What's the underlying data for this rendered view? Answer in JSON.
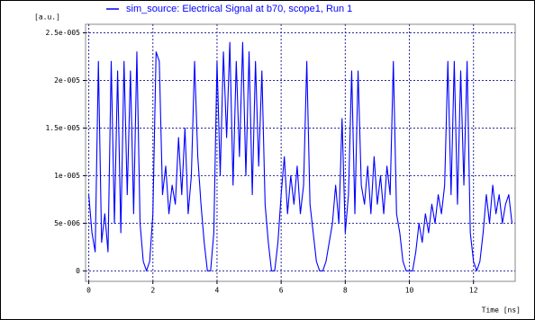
{
  "chart_data": {
    "type": "line",
    "y_label": "[a.u.]",
    "x_label": "Time [ns]",
    "x": [
      0,
      0.1,
      0.2,
      0.3,
      0.4,
      0.5,
      0.6,
      0.7,
      0.8,
      0.9,
      1,
      1.1,
      1.2,
      1.3,
      1.4,
      1.5,
      1.6,
      1.7,
      1.8,
      1.9,
      2,
      2.1,
      2.2,
      2.3,
      2.4,
      2.5,
      2.6,
      2.7,
      2.8,
      2.9,
      3,
      3.1,
      3.2,
      3.3,
      3.4,
      3.5,
      3.6,
      3.7,
      3.8,
      3.9,
      4,
      4.1,
      4.2,
      4.3,
      4.4,
      4.5,
      4.6,
      4.7,
      4.8,
      4.9,
      5,
      5.1,
      5.2,
      5.3,
      5.4,
      5.5,
      5.6,
      5.7,
      5.8,
      5.9,
      6,
      6.1,
      6.2,
      6.3,
      6.4,
      6.5,
      6.6,
      6.7,
      6.8,
      6.9,
      7,
      7.1,
      7.2,
      7.3,
      7.4,
      7.5,
      7.6,
      7.7,
      7.8,
      7.9,
      8,
      8.1,
      8.2,
      8.3,
      8.4,
      8.5,
      8.6,
      8.7,
      8.8,
      8.9,
      9,
      9.1,
      9.2,
      9.3,
      9.4,
      9.5,
      9.6,
      9.7,
      9.8,
      9.9,
      10,
      10.1,
      10.2,
      10.3,
      10.4,
      10.5,
      10.6,
      10.7,
      10.8,
      10.9,
      11,
      11.1,
      11.2,
      11.3,
      11.4,
      11.5,
      11.6,
      11.7,
      11.8,
      11.9,
      12,
      12.1,
      12.2,
      12.3,
      12.4,
      12.5,
      12.6,
      12.7,
      12.8,
      12.9,
      13,
      13.1,
      13.2
    ],
    "series": [
      {
        "name": "sim_source: Electrical Signal at b70, scope1, Run 1",
        "color": "#0000ff",
        "values": [
          8e-06,
          4e-06,
          2e-06,
          2.2e-05,
          3e-06,
          6e-06,
          2e-06,
          2.2e-05,
          5e-06,
          2.1e-05,
          4e-06,
          2.2e-05,
          8e-06,
          2.1e-05,
          6e-06,
          2.3e-05,
          5e-06,
          1e-06,
          0,
          1e-06,
          6e-06,
          2.3e-05,
          2.2e-05,
          8e-06,
          1.1e-05,
          6e-06,
          9e-06,
          7e-06,
          1.4e-05,
          8e-06,
          1.5e-05,
          6e-06,
          1e-05,
          2.2e-05,
          1.2e-05,
          7e-06,
          3e-06,
          0,
          0,
          4e-06,
          2.2e-05,
          1e-05,
          2.3e-05,
          1.4e-05,
          2.4e-05,
          9e-06,
          2.2e-05,
          1.2e-05,
          2.4e-05,
          1e-05,
          2.3e-05,
          8e-06,
          2.2e-05,
          1.1e-05,
          2.1e-05,
          7e-06,
          3e-06,
          0,
          0,
          3e-06,
          8e-06,
          1.2e-05,
          6e-06,
          1e-05,
          7e-06,
          1.1e-05,
          6e-06,
          9e-06,
          2.2e-05,
          7e-06,
          4e-06,
          1e-06,
          0,
          0,
          1e-06,
          3e-06,
          5e-06,
          9e-06,
          5e-06,
          1.6e-05,
          4e-06,
          8e-06,
          2.1e-05,
          6e-06,
          2.1e-05,
          9e-06,
          7e-06,
          1.1e-05,
          6e-06,
          1.2e-05,
          7e-06,
          1e-05,
          6e-06,
          1.1e-05,
          8e-06,
          2.2e-05,
          6e-06,
          4e-06,
          1e-06,
          0,
          0,
          0,
          2e-06,
          5e-06,
          3e-06,
          6e-06,
          4e-06,
          7e-06,
          5e-06,
          8e-06,
          6e-06,
          9e-06,
          2.2e-05,
          8e-06,
          2.2e-05,
          7e-06,
          2.1e-05,
          9e-06,
          2.2e-05,
          4e-06,
          1e-06,
          0,
          1e-06,
          4e-06,
          8e-06,
          5e-06,
          9e-06,
          6e-06,
          8e-06,
          5e-06,
          7e-06,
          8e-06,
          5e-06
        ]
      }
    ],
    "xlim": [
      -0.1,
      13.3
    ],
    "xticks": [
      0,
      2,
      4,
      6,
      8,
      10,
      12
    ],
    "ylim": [
      -1.1e-06,
      2.59e-05
    ],
    "yticks": [
      0,
      {
        "value": 5e-06,
        "label": "5e-006"
      },
      {
        "value": 1e-05,
        "label": "1e-005"
      },
      {
        "value": 1.5e-05,
        "label": "1.5e-005"
      },
      {
        "value": 2e-05,
        "label": "2e-005"
      },
      {
        "value": 2.5e-05,
        "label": "2.5e-005"
      }
    ],
    "grid": true,
    "legend": "top"
  }
}
